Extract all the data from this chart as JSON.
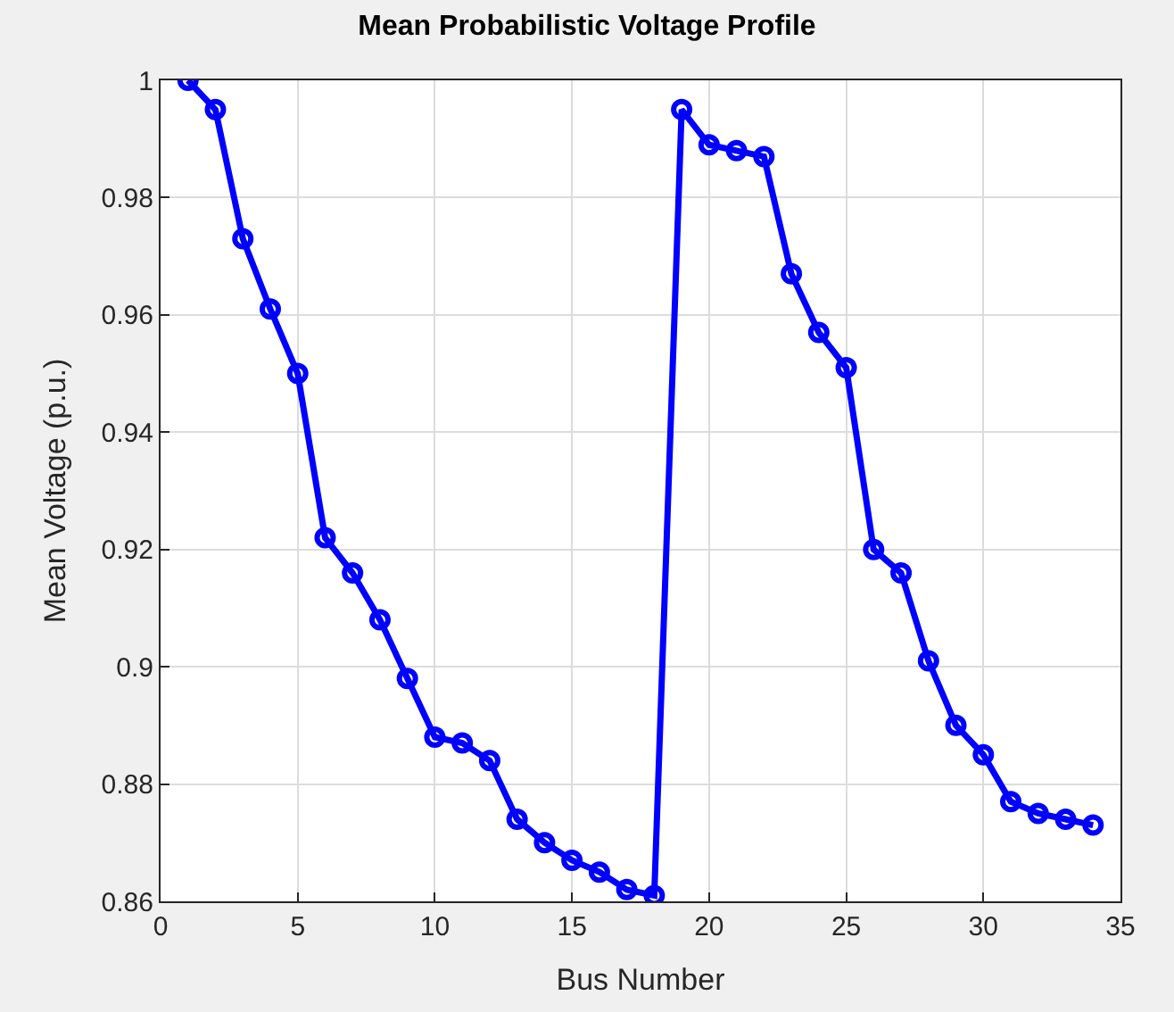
{
  "chart_data": {
    "type": "line",
    "title": "Mean Probabilistic Voltage Profile",
    "xlabel": "Bus Number",
    "ylabel": "Mean Voltage (p.u.)",
    "x": [
      1,
      2,
      3,
      4,
      5,
      6,
      7,
      8,
      9,
      10,
      11,
      12,
      13,
      14,
      15,
      16,
      17,
      18,
      19,
      20,
      21,
      22,
      23,
      24,
      25,
      26,
      27,
      28,
      29,
      30,
      31,
      32,
      33,
      34
    ],
    "series": [
      {
        "color": "#0000ff",
        "values": [
          1.0,
          0.995,
          0.973,
          0.961,
          0.95,
          0.922,
          0.916,
          0.908,
          0.898,
          0.888,
          0.887,
          0.884,
          0.874,
          0.87,
          0.867,
          0.865,
          0.862,
          0.861,
          0.995,
          0.989,
          0.988,
          0.987,
          0.967,
          0.957,
          0.951,
          0.92,
          0.916,
          0.901,
          0.89,
          0.885,
          0.877,
          0.875,
          0.874,
          0.873
        ]
      }
    ],
    "xlim": [
      0,
      35
    ],
    "xticks": [
      0,
      5,
      10,
      15,
      20,
      25,
      30,
      35
    ],
    "ylim": [
      0.86,
      1
    ],
    "yticks": [
      0.86,
      0.88,
      0.9,
      0.92,
      0.94,
      0.96,
      0.98,
      1
    ],
    "grid": true,
    "marker": "circle",
    "line_style": "solid"
  }
}
